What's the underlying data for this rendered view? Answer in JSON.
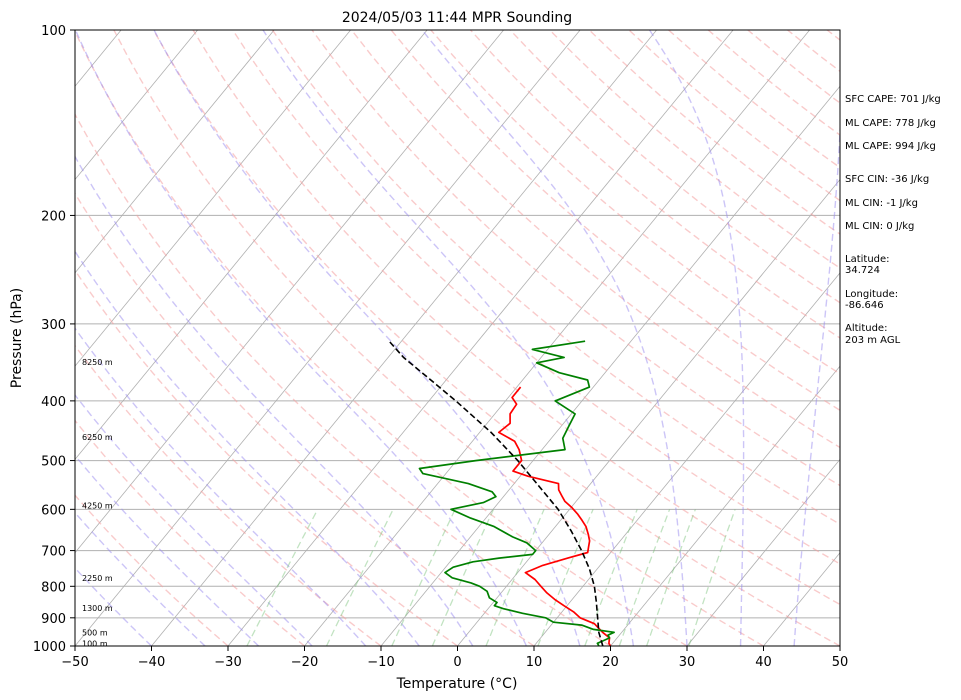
{
  "chart_data": {
    "type": "line",
    "title": "2024/05/03 11:44 MPR Sounding",
    "xlabel": "Temperature (°C)",
    "ylabel": "Pressure (hPa)",
    "xlim": [
      -50,
      50
    ],
    "ylim": [
      1000,
      100
    ],
    "yscale": "log",
    "x_ticks": [
      "−50",
      "−40",
      "−30",
      "−20",
      "−10",
      "0",
      "10",
      "20",
      "30",
      "40",
      "50"
    ],
    "y_ticks": [
      "100",
      "200",
      "300",
      "400",
      "500",
      "600",
      "700",
      "800",
      "900",
      "1000"
    ],
    "grid": true,
    "legend": "none",
    "stats": [
      "SFC CAPE: 701 J/kg",
      "ML CAPE: 778 J/kg",
      "ML CAPE: 994 J/kg",
      "SFC CIN: -36 J/kg",
      "ML CIN: -1 J/kg",
      "ML CIN: 0 J/kg",
      "Latitude:",
      "34.724",
      "Longitude:",
      "-86.646",
      "Altitude:",
      "203 m AGL"
    ],
    "height_labels": [
      {
        "text": "8250 m",
        "p": 346
      },
      {
        "text": "6250 m",
        "p": 458
      },
      {
        "text": "4250 m",
        "p": 591
      },
      {
        "text": "2250 m",
        "p": 775
      },
      {
        "text": "1300 m",
        "p": 867
      },
      {
        "text": "500 m",
        "p": 950
      },
      {
        "text": "100 m",
        "p": 990
      }
    ],
    "series": [
      {
        "color": "#ff0000",
        "points": [
          [
            20,
            1000
          ],
          [
            19.5,
            990
          ],
          [
            19,
            970
          ],
          [
            17.5,
            950
          ],
          [
            15.5,
            920
          ],
          [
            13,
            900
          ],
          [
            11.5,
            880
          ],
          [
            9.6,
            860
          ],
          [
            7.7,
            840
          ],
          [
            6,
            820
          ],
          [
            4.5,
            800
          ],
          [
            3,
            780
          ],
          [
            1,
            760
          ],
          [
            2.5,
            740
          ],
          [
            5,
            720
          ],
          [
            7,
            705
          ],
          [
            6.5,
            690
          ],
          [
            6,
            675
          ],
          [
            5.2,
            660
          ],
          [
            4,
            640
          ],
          [
            2.8,
            625
          ],
          [
            1.5,
            610
          ],
          [
            0,
            595
          ],
          [
            -1.5,
            582
          ],
          [
            -2.5,
            570
          ],
          [
            -3.5,
            558
          ],
          [
            -4.2,
            545
          ],
          [
            -9,
            530
          ],
          [
            -11.5,
            520
          ],
          [
            -11.5,
            500
          ],
          [
            -13,
            480
          ],
          [
            -14.5,
            465
          ],
          [
            -17.5,
            450
          ],
          [
            -17,
            435
          ],
          [
            -18,
            420
          ],
          [
            -18.2,
            405
          ],
          [
            -19.5,
            395
          ],
          [
            -19.5,
            380
          ]
        ]
      },
      {
        "color": "#008000",
        "points": [
          [
            18.5,
            1000
          ],
          [
            18,
            990
          ],
          [
            18.5,
            980
          ],
          [
            19,
            970
          ],
          [
            18.5,
            960
          ],
          [
            19,
            950
          ],
          [
            16,
            940
          ],
          [
            14,
            925
          ],
          [
            10,
            915
          ],
          [
            8.5,
            900
          ],
          [
            5,
            885
          ],
          [
            2,
            870
          ],
          [
            0.5,
            860
          ],
          [
            0.5,
            850
          ],
          [
            -1,
            835
          ],
          [
            -2,
            815
          ],
          [
            -3.5,
            800
          ],
          [
            -5,
            790
          ],
          [
            -8,
            775
          ],
          [
            -9.5,
            760
          ],
          [
            -9,
            745
          ],
          [
            -7,
            730
          ],
          [
            -4,
            720
          ],
          [
            0,
            710
          ],
          [
            0,
            700
          ],
          [
            -1,
            690
          ],
          [
            -2,
            680
          ],
          [
            -4.5,
            665
          ],
          [
            -8,
            640
          ],
          [
            -12,
            620
          ],
          [
            -15.5,
            600
          ],
          [
            -12,
            585
          ],
          [
            -11,
            572
          ],
          [
            -12,
            562
          ],
          [
            -16,
            545
          ],
          [
            -23,
            525
          ],
          [
            -24,
            515
          ],
          [
            -17.5,
            500
          ],
          [
            -7,
            480
          ],
          [
            -8.5,
            460
          ],
          [
            -9,
            440
          ],
          [
            -9.5,
            420
          ],
          [
            -13.5,
            400
          ],
          [
            -10.5,
            380
          ],
          [
            -11.5,
            370
          ],
          [
            -16,
            360
          ],
          [
            -20,
            347
          ],
          [
            -17,
            340
          ],
          [
            -22,
            330
          ],
          [
            -16,
            320
          ]
        ]
      },
      {
        "color": "#000000",
        "dashed": true,
        "points": [
          [
            19,
            1000
          ],
          [
            17,
            950
          ],
          [
            13.5,
            850
          ],
          [
            11.5,
            800
          ],
          [
            9,
            750
          ],
          [
            6,
            700
          ],
          [
            2.5,
            650
          ],
          [
            -1.5,
            600
          ],
          [
            -6.5,
            550
          ],
          [
            -12,
            500
          ],
          [
            -18.5,
            450
          ],
          [
            -26.5,
            400
          ],
          [
            -32,
            370
          ],
          [
            -38,
            340
          ],
          [
            -41.6,
            320
          ]
        ]
      }
    ]
  }
}
